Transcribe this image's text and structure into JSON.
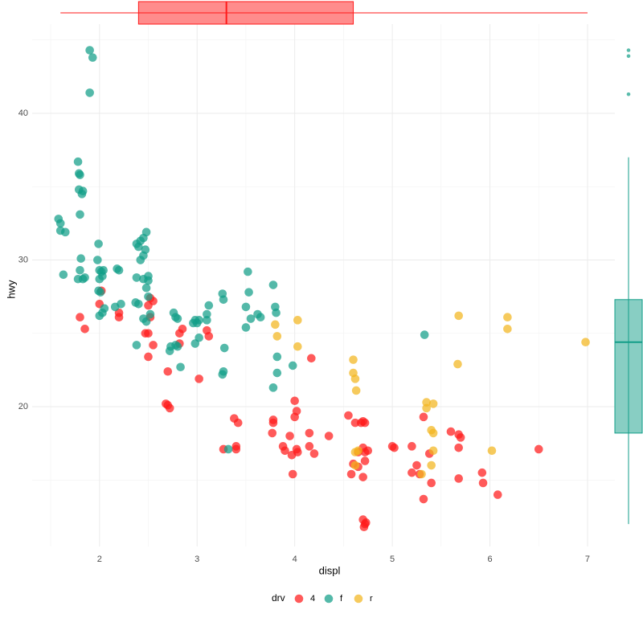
{
  "chart_data": [
    {
      "type": "scatter",
      "xlabel": "displ",
      "ylabel": "hwy",
      "legend_title": "drv",
      "legend": "bottom",
      "grid": true,
      "xlim": [
        1.31,
        7.28
      ],
      "ylim": [
        10.47,
        46.08
      ],
      "xticks": [
        2,
        3,
        4,
        5,
        6,
        7
      ],
      "yticks": [
        20,
        30,
        40
      ],
      "x_minor_ticks": [
        1.5,
        2.5,
        3.5,
        4.5,
        5.5,
        6.5
      ],
      "y_minor_ticks": [
        15,
        25,
        35,
        45
      ],
      "series": [
        {
          "name": "4",
          "color": "#ff1a1a",
          "x": [
            1.8,
            1.85,
            2.0,
            2.02,
            2.2,
            2.2,
            2.47,
            2.5,
            2.52,
            2.5,
            2.52,
            2.55,
            2.5,
            2.55,
            2.68,
            2.7,
            2.72,
            2.7,
            2.82,
            2.85,
            2.82,
            3.02,
            3.1,
            3.12,
            3.27,
            3.38,
            3.42,
            3.4,
            3.4,
            3.78,
            3.78,
            3.77,
            3.88,
            3.9,
            3.95,
            3.97,
            3.98,
            4.0,
            4.02,
            4.0,
            4.02,
            4.03,
            4.15,
            4.17,
            4.15,
            4.2,
            4.35,
            4.55,
            4.58,
            4.6,
            4.62,
            4.65,
            4.68,
            4.7,
            4.72,
            4.65,
            4.7,
            4.72,
            4.7,
            4.72,
            4.75,
            4.7,
            4.72,
            4.71,
            4.73,
            5.0,
            5.02,
            5.2,
            5.2,
            5.25,
            5.28,
            5.32,
            5.32,
            5.38,
            5.4,
            5.6,
            5.68,
            5.7,
            5.68,
            5.68,
            5.92,
            5.93,
            6.08,
            6.5
          ],
          "values": [
            26.1,
            25.3,
            27,
            27.9,
            26.1,
            26.4,
            25,
            25,
            26.1,
            26.9,
            27.4,
            27.2,
            23.4,
            24.2,
            20.2,
            20.1,
            19.9,
            22.4,
            25,
            25.3,
            24.3,
            21.9,
            25.2,
            24.8,
            17.1,
            19.2,
            18.9,
            17.1,
            17.3,
            19.1,
            18.9,
            18.2,
            17.3,
            17,
            18,
            16.7,
            15.4,
            20.4,
            19.7,
            19.3,
            17.1,
            16.9,
            18.2,
            23.3,
            17.3,
            16.8,
            18,
            19.4,
            15.4,
            16.1,
            18.9,
            15.9,
            18.9,
            19,
            18.9,
            16.9,
            17.2,
            16.3,
            15.2,
            16.9,
            17,
            12.3,
            12,
            11.8,
            12.1,
            17.3,
            17.2,
            17.3,
            15.5,
            16,
            15.4,
            19.3,
            13.7,
            16.8,
            14.8,
            18.3,
            18.1,
            17.9,
            17.2,
            15.1,
            15.5,
            14.8,
            14,
            17.1
          ]
        },
        {
          "name": "f",
          "color": "#129e88",
          "x": [
            1.6,
            1.6,
            1.65,
            1.63,
            1.58,
            1.9,
            1.93,
            1.9,
            1.78,
            1.79,
            1.8,
            1.79,
            1.82,
            1.83,
            1.8,
            1.81,
            1.78,
            1.8,
            1.83,
            1.85,
            1.98,
            2.0,
            2.02,
            2.04,
            2.0,
            2.03,
            1.99,
            1.99,
            2.01,
            2.0,
            2.03,
            2.05,
            2.16,
            2.18,
            2.2,
            2.22,
            2.38,
            2.4,
            2.42,
            2.45,
            2.48,
            2.47,
            2.45,
            2.42,
            2.38,
            2.45,
            2.5,
            2.5,
            2.48,
            2.5,
            2.37,
            2.4,
            2.45,
            2.52,
            2.48,
            2.38,
            2.72,
            2.73,
            2.78,
            2.8,
            2.76,
            2.78,
            2.8,
            2.83,
            2.96,
            2.98,
            3.0,
            3.02,
            2.98,
            3.02,
            3.1,
            3.12,
            3.1,
            3.26,
            3.27,
            3.28,
            3.27,
            3.26,
            3.32,
            3.5,
            3.52,
            3.53,
            3.5,
            3.55,
            3.62,
            3.65,
            3.78,
            3.8,
            3.81,
            3.82,
            3.82,
            3.78,
            3.98,
            5.33
          ],
          "values": [
            32.5,
            32,
            31.9,
            29,
            32.8,
            44.3,
            43.8,
            41.4,
            36.7,
            35.9,
            35.8,
            34.8,
            34.5,
            34.7,
            33.1,
            30.1,
            28.7,
            29.3,
            28.7,
            28.8,
            30,
            29.3,
            29.2,
            29.3,
            28.7,
            28.9,
            31.1,
            27.9,
            27.8,
            26.2,
            26.4,
            26.7,
            26.8,
            29.4,
            29.3,
            27,
            31.1,
            30.9,
            31.3,
            31.5,
            31.9,
            30.7,
            30.3,
            30,
            28.8,
            28.7,
            28.9,
            28.6,
            28.1,
            27.5,
            27.1,
            27,
            26,
            26.3,
            25.8,
            24.2,
            23.8,
            24.1,
            24.2,
            24.1,
            26.4,
            26.1,
            26,
            22.7,
            25.7,
            25.9,
            25.7,
            25.9,
            24.3,
            24.7,
            26.3,
            26.9,
            25.9,
            27.7,
            27.3,
            24,
            22.4,
            22.2,
            17.1,
            26.8,
            29.2,
            27.8,
            25.4,
            26,
            26.3,
            26.1,
            28.3,
            26.8,
            26.4,
            23.4,
            22.3,
            21.3,
            22.8,
            24.9
          ]
        },
        {
          "name": "r",
          "color": "#f3b51f",
          "x": [
            3.8,
            3.82,
            4.03,
            4.03,
            4.6,
            4.6,
            4.62,
            4.63,
            4.62,
            4.65,
            4.62,
            5.3,
            5.35,
            5.35,
            5.4,
            5.42,
            5.4,
            5.42,
            5.42,
            5.68,
            5.67,
            6.02,
            6.18,
            6.18,
            6.98
          ],
          "values": [
            25.6,
            24.8,
            25.9,
            24.1,
            23.2,
            22.3,
            21.9,
            21.1,
            16.9,
            17,
            16,
            15.4,
            20.3,
            19.9,
            18.4,
            18.2,
            16,
            17,
            20.2,
            26.2,
            22.9,
            17,
            26.1,
            25.3,
            24.4
          ]
        }
      ]
    },
    {
      "type": "boxplot",
      "orientation": "horizontal",
      "color": "#ff1a1a",
      "xlim": [
        1.31,
        7.28
      ],
      "min": 1.6,
      "q1": 2.4,
      "median": 3.3,
      "q3": 4.6,
      "max": 7.0
    },
    {
      "type": "boxplot",
      "orientation": "vertical",
      "color": "#129e88",
      "ylim": [
        10.47,
        46.08
      ],
      "min": 12,
      "q1": 18.2,
      "median": 24.4,
      "q3": 27.3,
      "max": 37,
      "outliers": [
        44.3,
        43.9,
        41.3
      ]
    }
  ]
}
